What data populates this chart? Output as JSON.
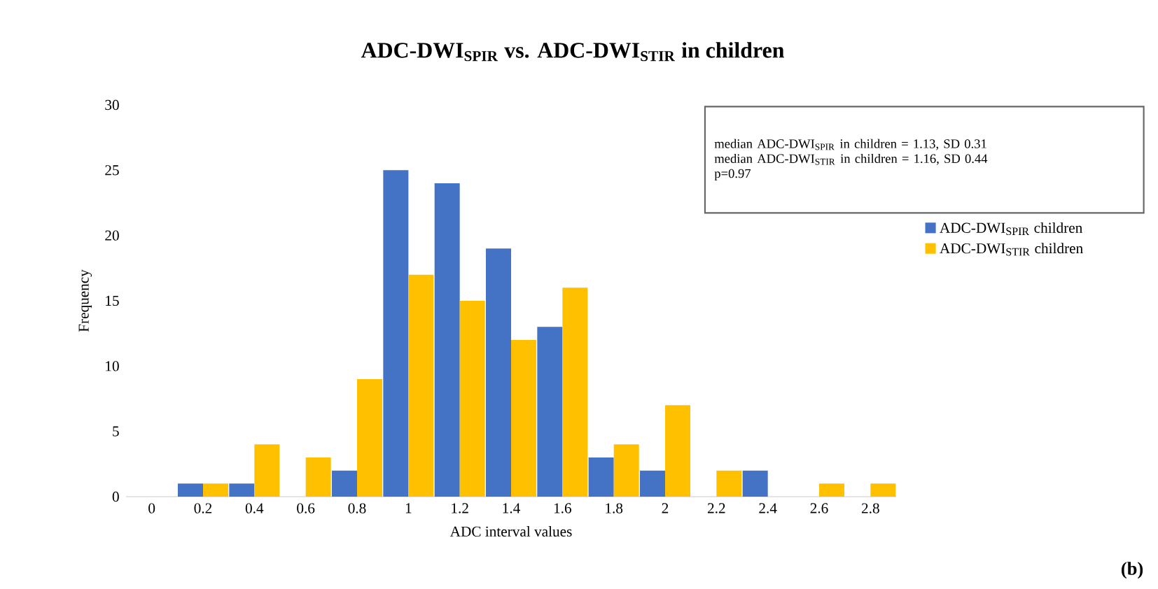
{
  "chart_data": {
    "type": "bar",
    "title": "ADC-DWI$_{SPIR}$ vs. ADC-DWI$_{STIR}$ in children",
    "xlabel": "ADC interval values",
    "ylabel": "Frequency",
    "categories": [
      "0",
      "0.2",
      "0.4",
      "0.6",
      "0.8",
      "1",
      "1.2",
      "1.4",
      "1.6",
      "1.8",
      "2",
      "2.2",
      "2.4",
      "2.6",
      "2.8"
    ],
    "series": [
      {
        "name": "ADC-DWI$_{SPIR}$  children",
        "color": "#4472c4",
        "values": [
          0,
          1,
          1,
          0,
          2,
          25,
          24,
          19,
          13,
          3,
          2,
          0,
          2,
          0,
          0
        ]
      },
      {
        "name": "ADC-DWI$_{STIR}$  children",
        "color": "#ffc000",
        "values": [
          0,
          1,
          4,
          3,
          9,
          17,
          15,
          12,
          16,
          4,
          7,
          2,
          0,
          1,
          1
        ]
      }
    ],
    "ylim": [
      0,
      30
    ],
    "yticks": [
      0,
      5,
      10,
      15,
      20,
      25,
      30
    ],
    "legend": "right",
    "annotations": [
      "median ADC-DWI$_{SPIR}$ in children = 1.13, SD 0.31",
      "median ADC-DWI$_{STIR}$ in children = 1.16, SD 0.44",
      "p=0.97",
      "(b)"
    ]
  }
}
